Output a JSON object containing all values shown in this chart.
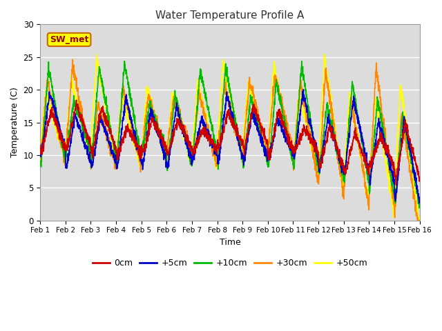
{
  "title": "Water Temperature Profile A",
  "xlabel": "Time",
  "ylabel": "Temperature (C)",
  "ylim": [
    0,
    30
  ],
  "xlim": [
    0,
    15
  ],
  "background_color": "#dcdcdc",
  "fig_background": "#ffffff",
  "grid_color": "#ffffff",
  "series_colors": {
    "0cm": "#cc0000",
    "+5cm": "#0000cc",
    "+10cm": "#00bb00",
    "+30cm": "#ff8800",
    "+50cm": "#ffff00"
  },
  "series_linewidth": 1.2,
  "xtick_labels": [
    "Feb 1",
    "Feb 2",
    "Feb 3",
    "Feb 4",
    "Feb 5",
    "Feb 6",
    "Feb 7",
    "Feb 8",
    "Feb 9",
    "Feb 10",
    "Feb 11",
    "Feb 12",
    "Feb 13",
    "Feb 14",
    "Feb 15",
    "Feb 16"
  ],
  "ytick_values": [
    0,
    5,
    10,
    15,
    20,
    25,
    30
  ],
  "legend_label": "SW_met",
  "legend_box_facecolor": "#ffff00",
  "legend_box_edgecolor": "#cc6600",
  "legend_text_color": "#990000",
  "num_days": 15,
  "points_per_day": 144
}
